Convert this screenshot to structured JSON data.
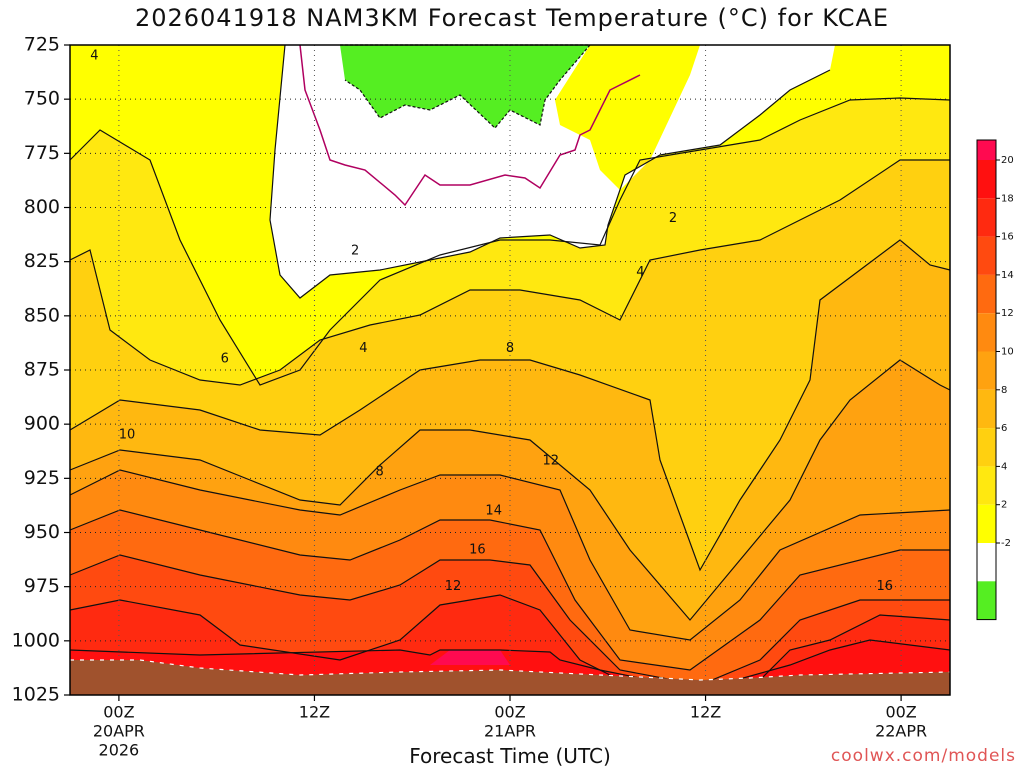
{
  "title": "2026041918 NAM3KM Forecast Temperature (°C) for KCAE",
  "credit": "coolwx.com/models",
  "chart_data": {
    "type": "contour",
    "xlabel": "Forecast Time (UTC)",
    "ylabel": "",
    "x_range_hours_utc": [
      -3,
      51
    ],
    "y_range_hpa": [
      1025,
      725
    ],
    "y_ticks": [
      "725",
      "750",
      "775",
      "800",
      "825",
      "850",
      "875",
      "900",
      "925",
      "950",
      "975",
      "1000",
      "1025"
    ],
    "x_ticks": [
      {
        "hour": 0,
        "lines": [
          "00Z",
          "20APR",
          "2026"
        ]
      },
      {
        "hour": 12,
        "lines": [
          "12Z"
        ]
      },
      {
        "hour": 24,
        "lines": [
          "00Z",
          "21APR"
        ]
      },
      {
        "hour": 36,
        "lines": [
          "12Z"
        ]
      },
      {
        "hour": 48,
        "lines": [
          "00Z",
          "22APR"
        ]
      }
    ],
    "colorbar": {
      "levels": [
        {
          "label": "20",
          "color": "#ff1010"
        },
        {
          "label": "18",
          "color": "#ff2a10"
        },
        {
          "label": "16",
          "color": "#ff4a10"
        },
        {
          "label": "14",
          "color": "#ff6a10"
        },
        {
          "label": "12",
          "color": "#ff8a10"
        },
        {
          "label": "10",
          "color": "#ffa210"
        },
        {
          "label": "8",
          "color": "#ffb810"
        },
        {
          "label": "6",
          "color": "#ffd010"
        },
        {
          "label": "4",
          "color": "#ffe810"
        },
        {
          "label": "2",
          "color": "#ffff00"
        },
        {
          "label": "-2",
          "color": "#ffffff"
        },
        {
          "label": "",
          "color": "#55ee22"
        }
      ],
      "top_color": "#ff0a50"
    },
    "contour_labels": [
      {
        "text": "4",
        "hour": -1.5,
        "hpa": 730
      },
      {
        "text": "2",
        "hour": 14.5,
        "hpa": 820
      },
      {
        "text": "2",
        "hour": 34,
        "hpa": 805
      },
      {
        "text": "4",
        "hour": 15,
        "hpa": 865
      },
      {
        "text": "4",
        "hour": 32,
        "hpa": 830
      },
      {
        "text": "6",
        "hour": 6.5,
        "hpa": 870
      },
      {
        "text": "8",
        "hour": 24,
        "hpa": 865
      },
      {
        "text": "8",
        "hour": 16,
        "hpa": 922
      },
      {
        "text": "10",
        "hour": 0.5,
        "hpa": 905
      },
      {
        "text": "12",
        "hour": 26.5,
        "hpa": 917
      },
      {
        "text": "12",
        "hour": 20.5,
        "hpa": 975
      },
      {
        "text": "14",
        "hour": 23,
        "hpa": 940
      },
      {
        "text": "16",
        "hour": 22,
        "hpa": 958
      },
      {
        "text": "16",
        "hour": 47,
        "hpa": 975
      }
    ],
    "colors": {
      "terrain": "#a0522d",
      "below_freezing": "#55ee22",
      "zero_line": "#b00060",
      "warmest": "#ff0a50"
    },
    "grid": true
  }
}
